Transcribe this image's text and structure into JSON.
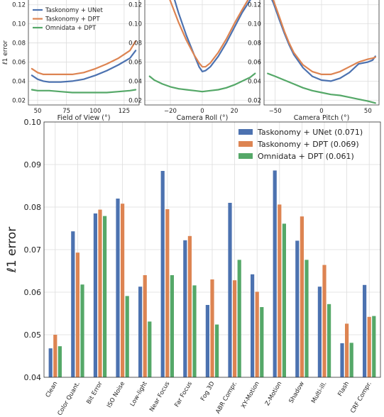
{
  "colors": {
    "unet": "#4c72b0",
    "dpt": "#dd8452",
    "omni": "#55a868",
    "plot_bg": "#ffffff",
    "grid": "#dddddd",
    "spine": "#333333"
  },
  "legend_top": [
    {
      "label": "Taskonomy + UNet",
      "color_key": "unet"
    },
    {
      "label": "Taskonomy + DPT",
      "color_key": "dpt"
    },
    {
      "label": "Omnidata + DPT",
      "color_key": "omni"
    }
  ],
  "chart_data": [
    {
      "type": "line",
      "id": "fov",
      "xlabel": "Field of View (°)",
      "ylabel": "ℓ1 error",
      "xlim": [
        42,
        138
      ],
      "ylim": [
        0.015,
        0.125
      ],
      "xticks": [
        50,
        75,
        100,
        125
      ],
      "yticks": [
        0.02,
        0.04,
        0.06,
        0.08,
        0.1,
        0.12
      ],
      "ytick_labels": [
        "0.02",
        "0.04",
        "0.06",
        "0.08",
        "0.10",
        "0.12"
      ],
      "series": [
        {
          "name": "Taskonomy + UNet",
          "color_key": "unet",
          "x": [
            45,
            50,
            55,
            60,
            70,
            80,
            90,
            100,
            110,
            120,
            130,
            135
          ],
          "y": [
            0.046,
            0.042,
            0.04,
            0.039,
            0.039,
            0.04,
            0.042,
            0.046,
            0.051,
            0.057,
            0.064,
            0.072
          ]
        },
        {
          "name": "Taskonomy + DPT",
          "color_key": "dpt",
          "x": [
            45,
            50,
            55,
            60,
            70,
            80,
            90,
            100,
            110,
            120,
            130,
            135
          ],
          "y": [
            0.053,
            0.049,
            0.047,
            0.047,
            0.047,
            0.047,
            0.049,
            0.053,
            0.058,
            0.064,
            0.072,
            0.082
          ]
        },
        {
          "name": "Omnidata + DPT",
          "color_key": "omni",
          "x": [
            45,
            50,
            60,
            70,
            80,
            90,
            100,
            110,
            120,
            130,
            135
          ],
          "y": [
            0.031,
            0.03,
            0.03,
            0.029,
            0.028,
            0.028,
            0.028,
            0.028,
            0.029,
            0.03,
            0.031
          ]
        }
      ]
    },
    {
      "type": "line",
      "id": "roll",
      "xlabel": "Camera Roll (°)",
      "xlim": [
        -36,
        36
      ],
      "ylim": [
        0.015,
        0.125
      ],
      "xticks": [
        -20,
        0,
        20
      ],
      "yticks": [
        0.02,
        0.04,
        0.06,
        0.08,
        0.1,
        0.12
      ],
      "series": [
        {
          "name": "Taskonomy + UNet",
          "color_key": "unet",
          "x": [
            -20,
            -15,
            -10,
            -5,
            -2,
            0,
            2,
            5,
            10,
            15,
            20,
            25,
            30,
            33
          ],
          "y": [
            0.14,
            0.112,
            0.088,
            0.067,
            0.055,
            0.05,
            0.051,
            0.055,
            0.066,
            0.08,
            0.096,
            0.112,
            0.125,
            0.131
          ]
        },
        {
          "name": "Taskonomy + DPT",
          "color_key": "dpt",
          "x": [
            -25,
            -20,
            -15,
            -10,
            -5,
            -2,
            0,
            2,
            5,
            10,
            15,
            20,
            25,
            30,
            33
          ],
          "y": [
            0.143,
            0.124,
            0.102,
            0.083,
            0.067,
            0.059,
            0.055,
            0.055,
            0.059,
            0.07,
            0.084,
            0.1,
            0.115,
            0.129,
            0.136
          ]
        },
        {
          "name": "Omnidata + DPT",
          "color_key": "omni",
          "x": [
            -33,
            -30,
            -25,
            -20,
            -15,
            -10,
            -5,
            0,
            5,
            10,
            15,
            20,
            25,
            30,
            33
          ],
          "y": [
            0.045,
            0.041,
            0.037,
            0.034,
            0.032,
            0.031,
            0.03,
            0.029,
            0.03,
            0.031,
            0.033,
            0.036,
            0.04,
            0.044,
            0.048
          ]
        }
      ]
    },
    {
      "type": "line",
      "id": "pitch",
      "xlabel": "Camera Pitch (°)",
      "xlim": [
        -62,
        62
      ],
      "ylim": [
        0.015,
        0.125
      ],
      "xticks": [
        -50,
        0,
        50
      ],
      "yticks": [
        0.02,
        0.04,
        0.06,
        0.08,
        0.1,
        0.12
      ],
      "series": [
        {
          "name": "Taskonomy + UNet",
          "color_key": "unet",
          "x": [
            -58,
            -52,
            -45,
            -40,
            -35,
            -30,
            -20,
            -10,
            0,
            10,
            20,
            30,
            40,
            50,
            55,
            58
          ],
          "y": [
            0.135,
            0.122,
            0.103,
            0.09,
            0.078,
            0.068,
            0.054,
            0.045,
            0.041,
            0.04,
            0.043,
            0.049,
            0.058,
            0.06,
            0.062,
            0.066
          ]
        },
        {
          "name": "Taskonomy + DPT",
          "color_key": "dpt",
          "x": [
            -58,
            -52,
            -45,
            -40,
            -35,
            -30,
            -20,
            -10,
            0,
            10,
            20,
            30,
            40,
            50,
            55,
            58
          ],
          "y": [
            0.138,
            0.125,
            0.106,
            0.092,
            0.08,
            0.07,
            0.057,
            0.05,
            0.047,
            0.047,
            0.05,
            0.055,
            0.06,
            0.063,
            0.064,
            0.065
          ]
        },
        {
          "name": "Omnidata + DPT",
          "color_key": "omni",
          "x": [
            -58,
            -50,
            -40,
            -30,
            -20,
            -10,
            0,
            10,
            20,
            30,
            40,
            50,
            58
          ],
          "y": [
            0.048,
            0.045,
            0.041,
            0.037,
            0.033,
            0.03,
            0.028,
            0.026,
            0.025,
            0.023,
            0.021,
            0.019,
            0.017
          ]
        }
      ]
    },
    {
      "type": "bar",
      "id": "corruptions",
      "ylabel": "ℓ1 error",
      "ylim": [
        0.04,
        0.1
      ],
      "yticks": [
        0.04,
        0.05,
        0.06,
        0.07,
        0.08,
        0.09,
        0.1
      ],
      "ytick_labels": [
        "0.04",
        "0.05",
        "0.06",
        "0.07",
        "0.08",
        "0.09",
        "0.10"
      ],
      "legend_position": "top-right",
      "categories": [
        "Clean",
        "Color Quant.",
        "Bit Error",
        "ISO Noise",
        "Low-light",
        "Near Focus",
        "Far Focus",
        "Fog 3D",
        "ABR Compr.",
        "XY-Motion",
        "Z-Motion",
        "Shadow",
        "Multi-ill.",
        "Flash",
        "CRF Compr."
      ],
      "series": [
        {
          "name": "Taskonomy + UNet (0.071)",
          "color_key": "unet",
          "values": [
            0.0468,
            0.0743,
            0.0785,
            0.082,
            0.0613,
            0.0885,
            0.0722,
            0.057,
            0.081,
            0.0642,
            0.0886,
            0.0721,
            0.0613,
            0.048,
            0.0617
          ]
        },
        {
          "name": "Taskonomy + DPT (0.069)",
          "color_key": "dpt",
          "values": [
            0.05,
            0.0693,
            0.0794,
            0.0808,
            0.064,
            0.0795,
            0.0732,
            0.063,
            0.0628,
            0.0601,
            0.0806,
            0.0778,
            0.0664,
            0.0526,
            0.0542
          ]
        },
        {
          "name": "Omnidata + DPT (0.061)",
          "color_key": "omni",
          "values": [
            0.0473,
            0.0618,
            0.0779,
            0.0591,
            0.0531,
            0.064,
            0.0616,
            0.0524,
            0.0676,
            0.0565,
            0.0761,
            0.0676,
            0.0572,
            0.0481,
            0.0544
          ]
        }
      ]
    }
  ]
}
